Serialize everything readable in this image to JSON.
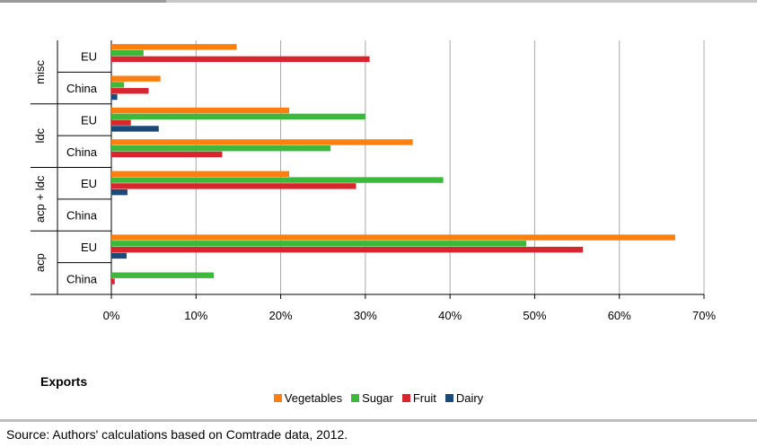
{
  "chart_title": "Exports",
  "source": "Source: Authors' calculations based on Comtrade data, 2012.",
  "chart_data": {
    "type": "bar",
    "orientation": "horizontal",
    "xlim": [
      0,
      70
    ],
    "x_ticks": [
      0,
      10,
      20,
      30,
      40,
      50,
      60,
      70
    ],
    "x_tick_labels": [
      "0%",
      "10%",
      "20%",
      "30%",
      "40%",
      "50%",
      "60%",
      "70%"
    ],
    "grid": true,
    "legend_position": "bottom",
    "groups": [
      {
        "name": "misc",
        "rows": [
          {
            "label": "EU"
          },
          {
            "label": "China"
          }
        ]
      },
      {
        "name": "ldc",
        "rows": [
          {
            "label": "EU"
          },
          {
            "label": "China"
          }
        ]
      },
      {
        "name": "acp + ldc",
        "rows": [
          {
            "label": "EU"
          },
          {
            "label": "China"
          }
        ]
      },
      {
        "name": "acp",
        "rows": [
          {
            "label": "EU"
          },
          {
            "label": "China"
          }
        ]
      }
    ],
    "categories": [
      "misc EU",
      "misc China",
      "ldc EU",
      "ldc China",
      "acp + ldc EU",
      "acp + ldc China",
      "acp EU",
      "acp China"
    ],
    "series": [
      {
        "name": "Vegetables",
        "color": "#ff7f0e",
        "values": [
          14.8,
          5.8,
          21.0,
          35.6,
          21.0,
          0,
          66.6,
          0
        ]
      },
      {
        "name": "Sugar",
        "color": "#3cb93c",
        "values": [
          3.8,
          1.5,
          30.0,
          25.9,
          39.2,
          0,
          49.0,
          12.1
        ]
      },
      {
        "name": "Fruit",
        "color": "#d9252e",
        "values": [
          30.5,
          4.4,
          2.3,
          13.1,
          28.9,
          0,
          55.7,
          0.4
        ]
      },
      {
        "name": "Dairy",
        "color": "#1a4a7a",
        "values": [
          0,
          0.7,
          5.6,
          0,
          1.9,
          0,
          1.8,
          0
        ]
      }
    ]
  }
}
